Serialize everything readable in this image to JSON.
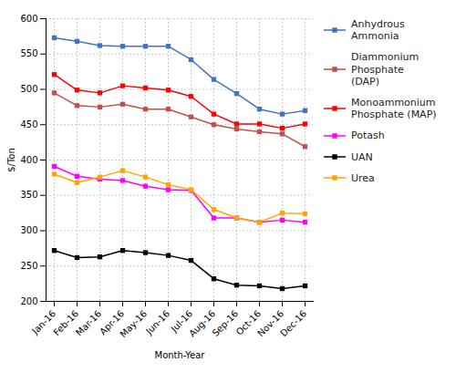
{
  "chart_data": {
    "type": "line",
    "categories": [
      "Jan-16",
      "Feb-16",
      "Mar-16",
      "Apr-16",
      "May-16",
      "Jun-16",
      "Jul-16",
      "Aug-16",
      "Sep-16",
      "Oct-16",
      "Nov-16",
      "Dec-16"
    ],
    "series": [
      {
        "name": "Anhydrous Ammonia",
        "color": "#4472C4",
        "marker": "square",
        "values": [
          573,
          568,
          562,
          561,
          561,
          561,
          542,
          514,
          494,
          472,
          465,
          470
        ]
      },
      {
        "name": "Diammonium Phosphate\n(DAP)",
        "color": "#C0504D",
        "marker": "square",
        "values": [
          495,
          477,
          475,
          479,
          472,
          472,
          461,
          450,
          444,
          440,
          437,
          419
        ]
      },
      {
        "name": "Monoammonium\nPhosphate (MAP)",
        "color": "#FF0000",
        "marker": "square",
        "values": [
          521,
          499,
          495,
          505,
          502,
          499,
          490,
          465,
          451,
          451,
          445,
          451
        ]
      },
      {
        "name": "Potash",
        "color": "#FF00FF",
        "marker": "square",
        "values": [
          391,
          377,
          373,
          371,
          363,
          358,
          357,
          318,
          318,
          312,
          315,
          312
        ]
      },
      {
        "name": "UAN",
        "color": "#000000",
        "marker": "square",
        "values": [
          272,
          262,
          263,
          272,
          269,
          265,
          258,
          232,
          223,
          222,
          218,
          222
        ]
      },
      {
        "name": "Urea",
        "color": "#FFA500",
        "marker": "square",
        "values": [
          380,
          368,
          376,
          385,
          376,
          365,
          358,
          330,
          318,
          312,
          325,
          324
        ]
      }
    ],
    "xlabel": "Month-Year",
    "ylabel": "$/Ton",
    "ylim": [
      200,
      600
    ],
    "yticks": [
      200,
      250,
      300,
      350,
      400,
      450,
      500,
      550,
      600
    ],
    "grid": true,
    "legend": "right"
  }
}
